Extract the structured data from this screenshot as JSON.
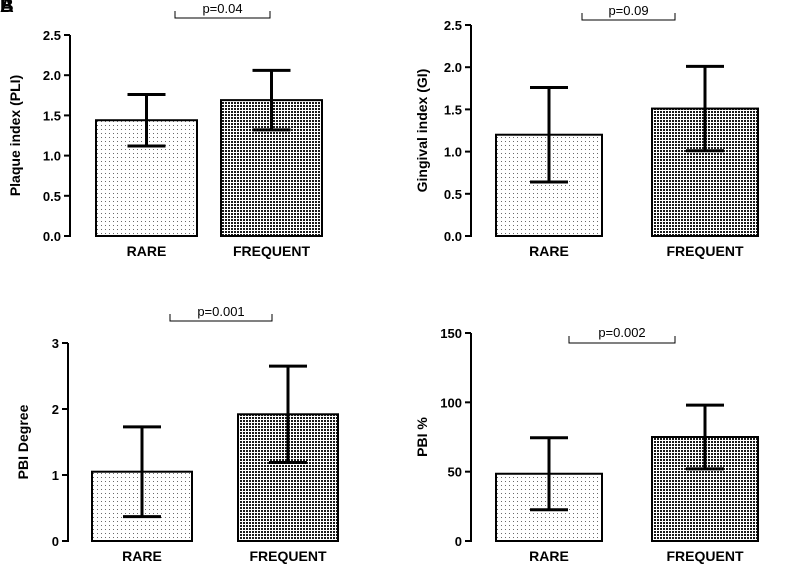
{
  "panel_letters": [
    "A",
    "B"
  ],
  "colors": {
    "axis": "#000000",
    "light_fill_dot": "#6a6a6a",
    "dark_fill_dot": "#1a1a1a"
  },
  "chart_data": [
    {
      "type": "bar",
      "categories": [
        "RARE",
        "FREQUENT"
      ],
      "values": [
        1.44,
        1.69
      ],
      "error": [
        0.32,
        0.37
      ],
      "ylabel": "Plaque index (PLI)",
      "ylim": [
        0,
        2.5
      ],
      "yticks": [
        "0.0",
        "0.5",
        "1.0",
        "1.5",
        "2.0",
        "2.5"
      ],
      "yticks_values": [
        0,
        0.5,
        1.0,
        1.5,
        2.0,
        2.5
      ],
      "pvalue": "p=0.04"
    },
    {
      "type": "bar",
      "categories": [
        "RARE",
        "FREQUENT"
      ],
      "values": [
        1.2,
        1.51
      ],
      "error": [
        0.56,
        0.5
      ],
      "ylabel": "Gingival index (GI)",
      "ylim": [
        0,
        2.5
      ],
      "yticks": [
        "0.0",
        "0.5",
        "1.0",
        "1.5",
        "2.0",
        "2.5"
      ],
      "yticks_values": [
        0,
        0.5,
        1.0,
        1.5,
        2.0,
        2.5
      ],
      "pvalue": "p=0.09"
    },
    {
      "type": "bar",
      "categories": [
        "RARE",
        "FREQUENT"
      ],
      "values": [
        1.05,
        1.92
      ],
      "error": [
        0.68,
        0.73
      ],
      "ylabel": "PBI Degree",
      "ylim": [
        0,
        3
      ],
      "yticks": [
        "0",
        "1",
        "2",
        "3"
      ],
      "yticks_values": [
        0,
        1,
        2,
        3
      ],
      "pvalue": "p=0.001"
    },
    {
      "type": "bar",
      "categories": [
        "RARE",
        "FREQUENT"
      ],
      "values": [
        48.5,
        75
      ],
      "error": [
        26,
        23
      ],
      "ylabel": "PBI %",
      "ylim": [
        0,
        150
      ],
      "yticks": [
        "0",
        "50",
        "100",
        "150"
      ],
      "yticks_values": [
        0,
        50,
        100,
        150
      ],
      "pvalue": "p=0.002"
    }
  ]
}
